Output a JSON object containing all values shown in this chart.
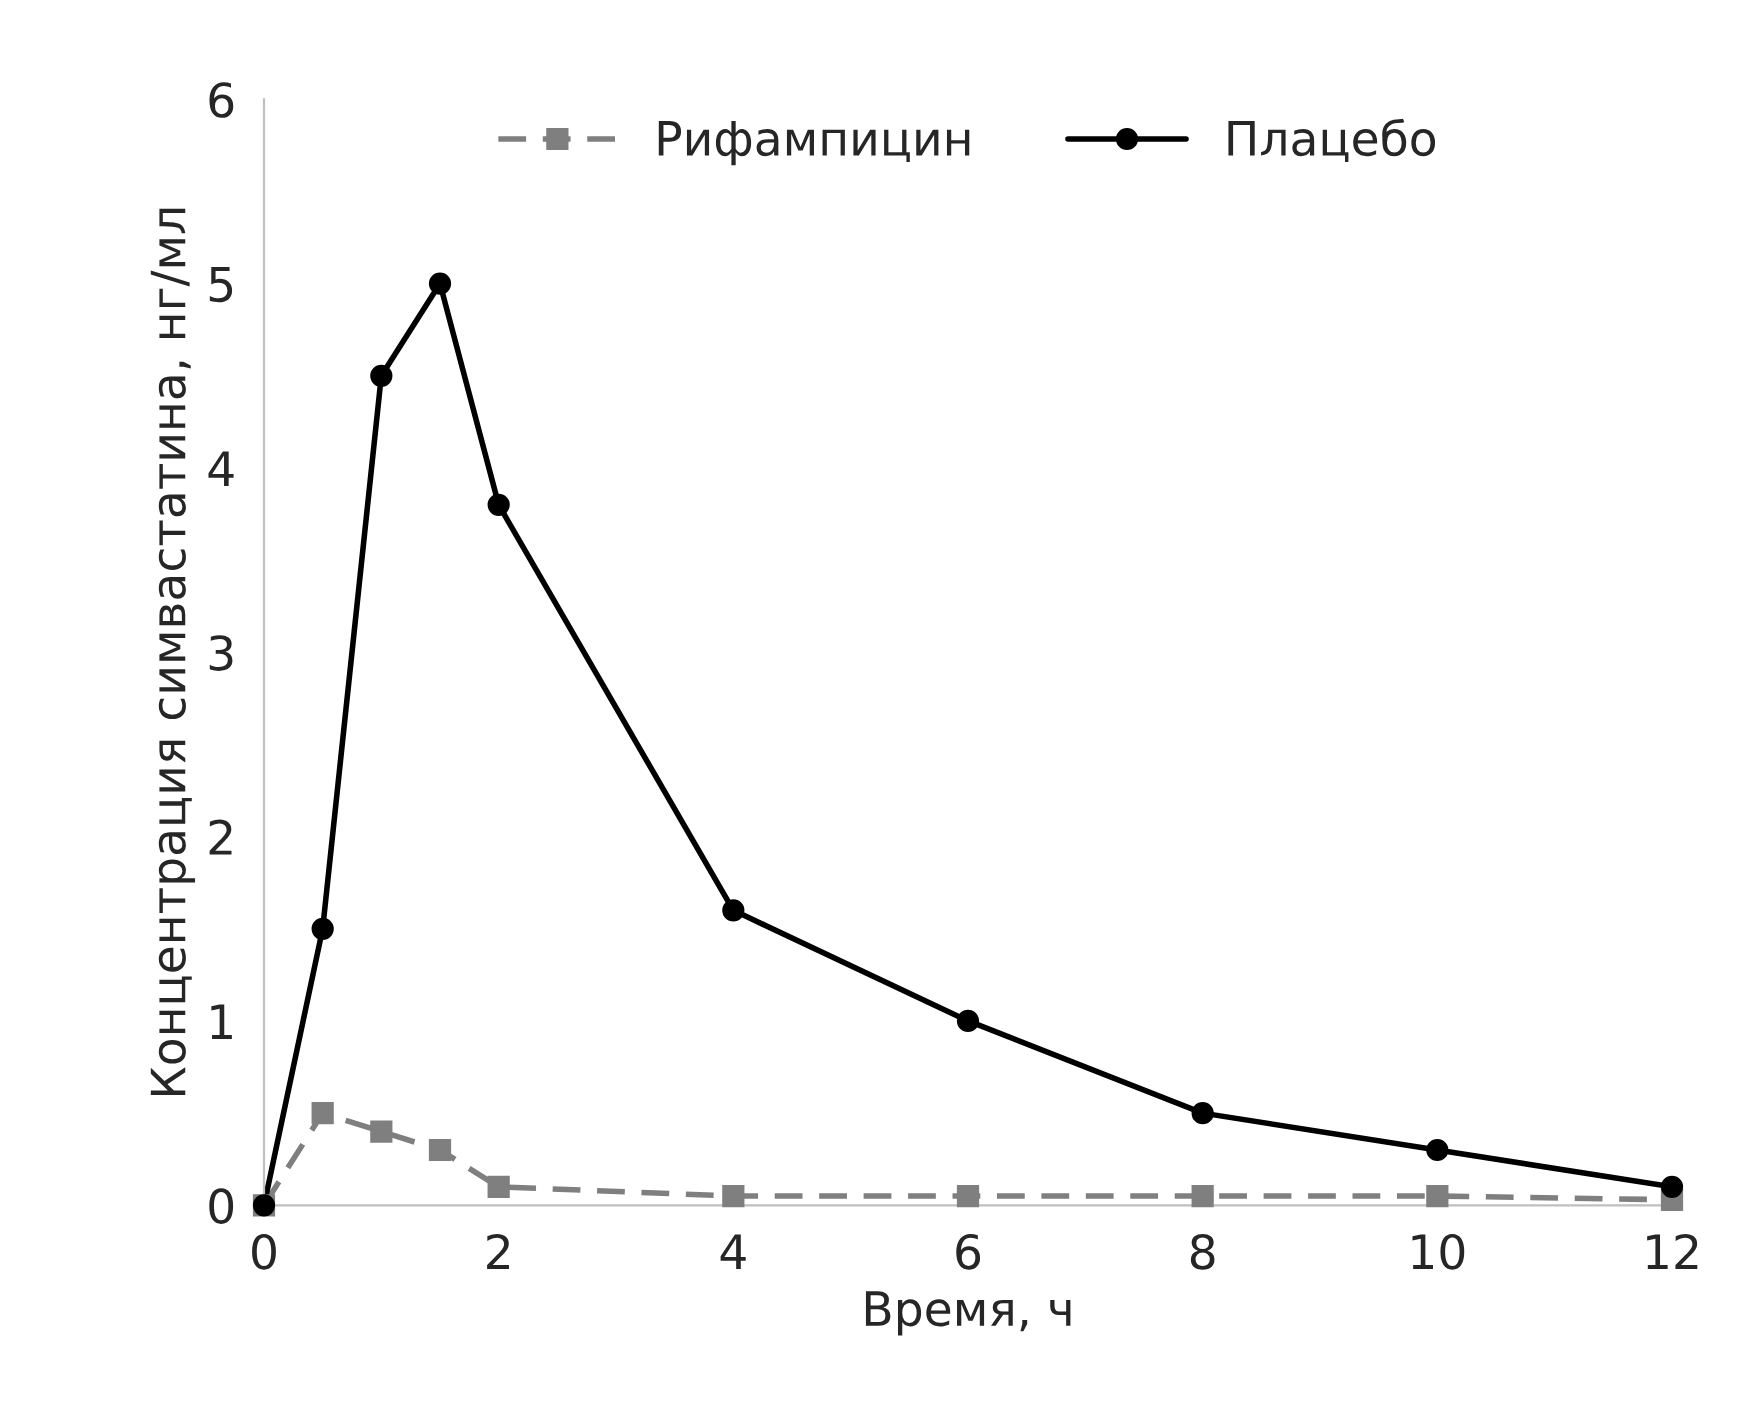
{
  "chart_data": {
    "type": "line",
    "xlabel": "Время, ч",
    "ylabel": "Концентрация симвастатина, нг/мл",
    "x": [
      0,
      0.5,
      1,
      1.5,
      2,
      4,
      6,
      8,
      10,
      12
    ],
    "series": [
      {
        "name": "Рифампицин",
        "color": "#7f7f7f",
        "marker": "square",
        "line_style": "dashed",
        "values": [
          0,
          0.5,
          0.4,
          0.3,
          0.1,
          0.05,
          0.05,
          0.05,
          0.05,
          0.03
        ]
      },
      {
        "name": "Плацебо",
        "color": "#000000",
        "marker": "circle",
        "line_style": "solid",
        "values": [
          0,
          1.5,
          4.5,
          5.0,
          3.8,
          1.6,
          1.0,
          0.5,
          0.3,
          0.1
        ]
      }
    ],
    "xlim": [
      0,
      12
    ],
    "ylim": [
      0,
      6
    ],
    "xticks": [
      0,
      2,
      4,
      6,
      8,
      10,
      12
    ],
    "yticks": [
      0,
      1,
      2,
      3,
      4,
      5,
      6
    ],
    "grid": false,
    "legend": "top"
  }
}
